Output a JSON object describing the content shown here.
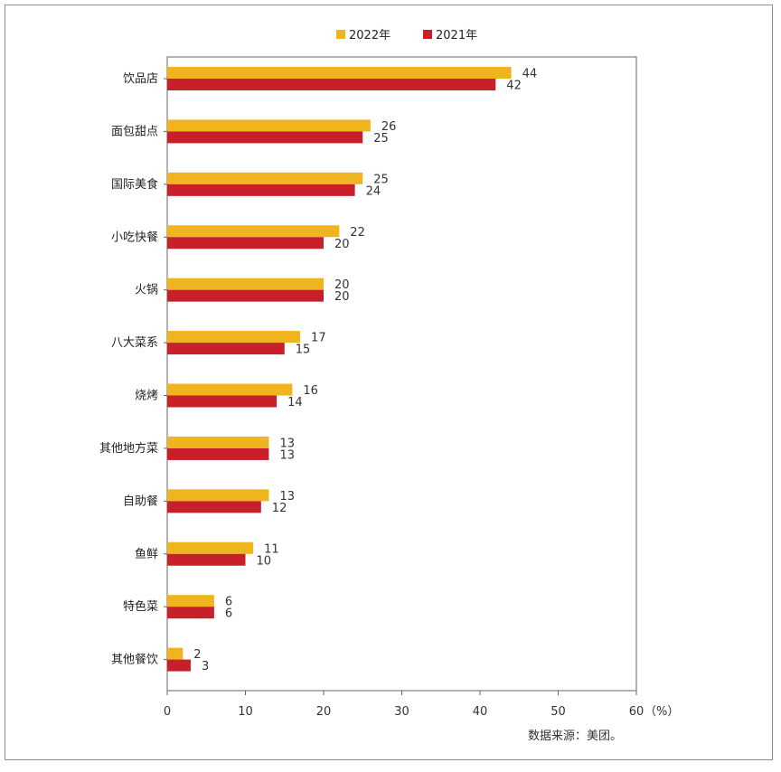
{
  "chart_data": {
    "type": "bar",
    "orientation": "horizontal",
    "categories": [
      "饮品店",
      "面包甜点",
      "国际美食",
      "小吃快餐",
      "火锅",
      "八大菜系",
      "烧烤",
      "其他地方菜",
      "自助餐",
      "鱼鲜",
      "特色菜",
      "其他餐饮"
    ],
    "series": [
      {
        "name": "2022年",
        "color": "#f0b41e",
        "values": [
          44,
          26,
          25,
          22,
          20,
          17,
          16,
          13,
          13,
          11,
          6,
          2
        ]
      },
      {
        "name": "2021年",
        "color": "#c8202a",
        "values": [
          42,
          25,
          24,
          20,
          20,
          15,
          14,
          13,
          12,
          10,
          6,
          3
        ]
      }
    ],
    "xlim": [
      0,
      60
    ],
    "xticks": [
      "0",
      "10",
      "20",
      "30",
      "40",
      "50",
      "60"
    ],
    "xunit": "（%）",
    "legend_position": "top",
    "grid": false
  },
  "source_note": "数据来源：美团。"
}
